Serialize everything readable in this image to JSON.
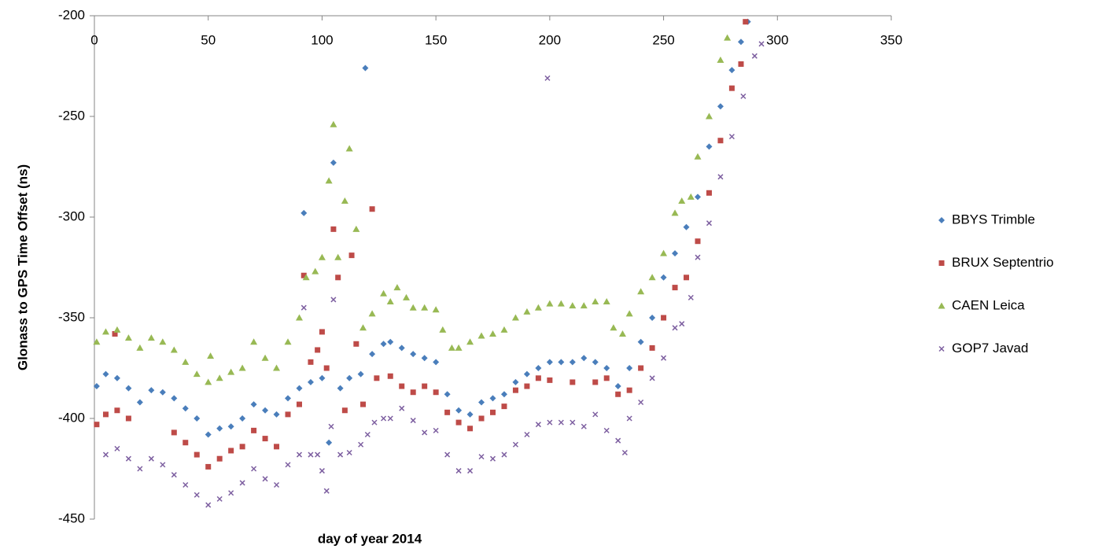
{
  "chart_data": {
    "type": "scatter",
    "x_label": "day of year 2014",
    "y_label": "Glonass to GPS Time Offset (ns)",
    "xlim": [
      0,
      350
    ],
    "xticks": [
      0,
      50,
      100,
      150,
      200,
      250,
      300,
      350
    ],
    "ylim": [
      -450,
      -200
    ],
    "yticks": [
      -200,
      -250,
      -300,
      -350,
      -400,
      -450
    ],
    "grid": false,
    "legend": "right",
    "series": [
      {
        "name": "BBYS Trimble",
        "color": "#4a7ebb",
        "marker": "diamond",
        "x": [
          1,
          5,
          10,
          15,
          20,
          25,
          30,
          35,
          40,
          45,
          50,
          55,
          60,
          65,
          70,
          75,
          80,
          85,
          90,
          92,
          95,
          100,
          103,
          105,
          108,
          112,
          117,
          119,
          122,
          127,
          130,
          135,
          140,
          145,
          150,
          155,
          160,
          165,
          170,
          175,
          180,
          185,
          190,
          195,
          200,
          205,
          210,
          215,
          220,
          225,
          230,
          235,
          240,
          245,
          250,
          255,
          260,
          265,
          270,
          275,
          280,
          284,
          287
        ],
        "values": [
          -384,
          -378,
          -380,
          -385,
          -392,
          -386,
          -387,
          -390,
          -395,
          -400,
          -408,
          -405,
          -404,
          -400,
          -393,
          -396,
          -398,
          -390,
          -385,
          -298,
          -382,
          -380,
          -412,
          -273,
          -385,
          -380,
          -378,
          -226,
          -368,
          -363,
          -362,
          -365,
          -368,
          -370,
          -372,
          -388,
          -396,
          -398,
          -392,
          -390,
          -388,
          -382,
          -378,
          -375,
          -372,
          -372,
          -372,
          -370,
          -372,
          -375,
          -384,
          -375,
          -362,
          -350,
          -330,
          -318,
          -305,
          -290,
          -265,
          -245,
          -227,
          -213,
          -203
        ]
      },
      {
        "name": "BRUX Septentrio",
        "color": "#be4b48",
        "marker": "square",
        "x": [
          1,
          5,
          9,
          10,
          15,
          35,
          40,
          45,
          50,
          55,
          60,
          65,
          70,
          75,
          80,
          85,
          90,
          92,
          95,
          98,
          100,
          102,
          105,
          107,
          110,
          113,
          115,
          118,
          122,
          124,
          130,
          135,
          140,
          145,
          150,
          155,
          160,
          165,
          170,
          175,
          180,
          185,
          190,
          195,
          200,
          210,
          220,
          225,
          230,
          235,
          240,
          245,
          250,
          255,
          260,
          265,
          270,
          275,
          280,
          284,
          286
        ],
        "values": [
          -403,
          -398,
          -358,
          -396,
          -400,
          -407,
          -412,
          -418,
          -424,
          -420,
          -416,
          -414,
          -406,
          -410,
          -414,
          -398,
          -393,
          -329,
          -372,
          -366,
          -357,
          -375,
          -306,
          -330,
          -396,
          -319,
          -363,
          -393,
          -296,
          -380,
          -379,
          -384,
          -387,
          -384,
          -387,
          -397,
          -402,
          -405,
          -400,
          -397,
          -394,
          -386,
          -384,
          -380,
          -381,
          -382,
          -382,
          -380,
          -388,
          -386,
          -375,
          -365,
          -350,
          -335,
          -330,
          -312,
          -288,
          -262,
          -236,
          -224,
          -203
        ]
      },
      {
        "name": "CAEN Leica",
        "color": "#98b954",
        "marker": "triangle",
        "x": [
          1,
          5,
          10,
          15,
          20,
          25,
          30,
          35,
          40,
          45,
          50,
          51,
          55,
          60,
          65,
          70,
          75,
          80,
          85,
          90,
          93,
          97,
          100,
          103,
          105,
          107,
          110,
          112,
          115,
          118,
          122,
          127,
          130,
          133,
          137,
          140,
          145,
          150,
          153,
          157,
          160,
          165,
          170,
          175,
          180,
          185,
          190,
          195,
          200,
          205,
          210,
          215,
          220,
          225,
          228,
          232,
          235,
          240,
          245,
          250,
          255,
          258,
          262,
          265,
          270,
          275,
          278
        ],
        "values": [
          -362,
          -357,
          -356,
          -360,
          -365,
          -360,
          -362,
          -366,
          -372,
          -378,
          -382,
          -369,
          -380,
          -377,
          -375,
          -362,
          -370,
          -375,
          -362,
          -350,
          -330,
          -327,
          -320,
          -282,
          -254,
          -320,
          -292,
          -266,
          -306,
          -355,
          -348,
          -338,
          -342,
          -335,
          -340,
          -345,
          -345,
          -346,
          -356,
          -365,
          -365,
          -362,
          -359,
          -358,
          -356,
          -350,
          -347,
          -345,
          -343,
          -343,
          -344,
          -344,
          -342,
          -342,
          -355,
          -358,
          -348,
          -337,
          -330,
          -318,
          -298,
          -292,
          -290,
          -270,
          -250,
          -222,
          -211
        ]
      },
      {
        "name": "GOP7 Javad",
        "color": "#7d5fa0",
        "marker": "x",
        "x": [
          5,
          10,
          15,
          20,
          25,
          30,
          35,
          40,
          45,
          50,
          55,
          60,
          65,
          70,
          75,
          80,
          85,
          90,
          92,
          95,
          98,
          100,
          102,
          104,
          105,
          108,
          112,
          117,
          120,
          123,
          127,
          130,
          135,
          140,
          145,
          150,
          155,
          160,
          165,
          170,
          175,
          180,
          185,
          190,
          195,
          199,
          200,
          205,
          210,
          215,
          220,
          225,
          230,
          233,
          235,
          240,
          245,
          250,
          255,
          258,
          262,
          265,
          270,
          275,
          280,
          285,
          290,
          293
        ],
        "values": [
          -418,
          -415,
          -420,
          -425,
          -420,
          -423,
          -428,
          -433,
          -438,
          -443,
          -440,
          -437,
          -432,
          -425,
          -430,
          -433,
          -423,
          -418,
          -345,
          -418,
          -418,
          -426,
          -436,
          -404,
          -341,
          -418,
          -417,
          -413,
          -408,
          -402,
          -400,
          -400,
          -395,
          -401,
          -407,
          -406,
          -418,
          -426,
          -426,
          -419,
          -420,
          -418,
          -413,
          -408,
          -403,
          -231,
          -402,
          -402,
          -402,
          -404,
          -398,
          -406,
          -411,
          -417,
          -400,
          -392,
          -380,
          -370,
          -355,
          -353,
          -340,
          -320,
          -303,
          -280,
          -260,
          -240,
          -220,
          -214
        ]
      }
    ]
  }
}
